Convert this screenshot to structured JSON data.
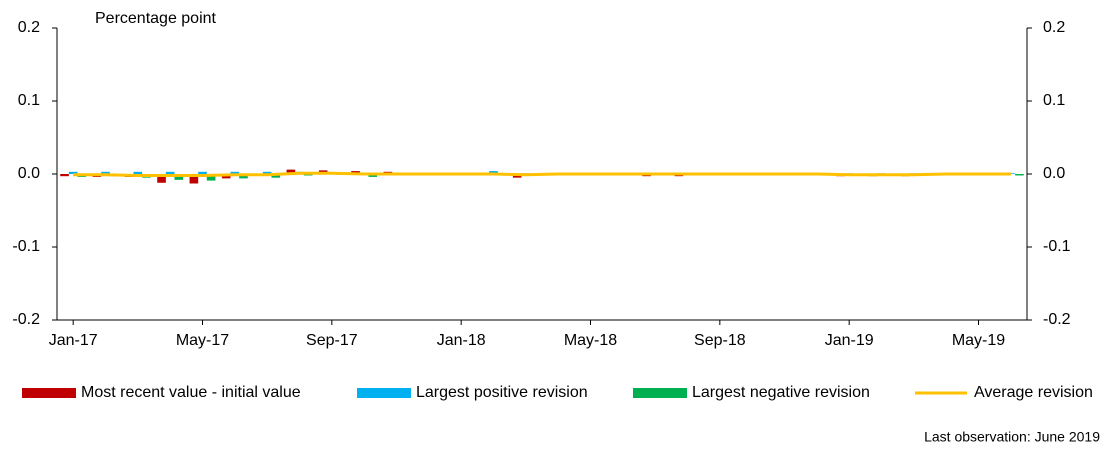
{
  "chart_data": {
    "type": "bar",
    "y_label": "Percentage point",
    "note": "Last observation: June 2019",
    "categories": [
      "Jan-17",
      null,
      null,
      null,
      "May-17",
      null,
      null,
      null,
      "Sep-17",
      null,
      null,
      null,
      "Jan-18",
      null,
      null,
      null,
      "May-18",
      null,
      null,
      null,
      "Sep-18",
      null,
      null,
      null,
      "Jan-19",
      null,
      null,
      null,
      "May-19",
      null
    ],
    "series": [
      {
        "name": "Most recent value - initial value",
        "color": "#c00000",
        "type": "bar",
        "values": [
          -0.003,
          -0.004,
          -0.004,
          -0.012,
          -0.013,
          -0.006,
          -0.002,
          0.006,
          0.005,
          0.004,
          0.003,
          0.002,
          -0.001,
          -0.001,
          -0.005,
          -0.001,
          -0.001,
          -0.001,
          -0.003,
          -0.003,
          -0.001,
          -0.002,
          -0.001,
          -0.001,
          -0.003,
          -0.003,
          -0.003,
          -0.001,
          -0.001,
          0
        ]
      },
      {
        "name": "Largest positive revision",
        "color": "#00b0f0",
        "type": "bar",
        "values": [
          0.003,
          0.003,
          0.003,
          0.003,
          0.003,
          0.003,
          0.003,
          0.003,
          0.002,
          0.002,
          0.002,
          0.001,
          0.001,
          0.004,
          0.001,
          0.001,
          0.001,
          0.001,
          0.001,
          0.001,
          0.001,
          0.001,
          0.001,
          0.001,
          0.001,
          0.001,
          0.001,
          0.001,
          0.001,
          0.001
        ]
      },
      {
        "name": "Largest negative revision",
        "color": "#00b050",
        "type": "bar",
        "values": [
          -0.004,
          -0.003,
          -0.005,
          -0.008,
          -0.009,
          -0.006,
          -0.005,
          -0.002,
          -0.001,
          -0.004,
          -0.001,
          -0.001,
          -0.001,
          -0.001,
          -0.001,
          -0.001,
          -0.001,
          -0.001,
          -0.001,
          -0.001,
          -0.001,
          -0.001,
          -0.001,
          -0.001,
          -0.001,
          -0.001,
          -0.001,
          -0.001,
          -0.001,
          -0.002
        ]
      },
      {
        "name": "Average revision",
        "color": "#ffc000",
        "type": "line",
        "values": [
          -0.001,
          -0.001,
          -0.002,
          -0.002,
          -0.002,
          -0.001,
          -0.001,
          0.001,
          0.001,
          0,
          0,
          0,
          0,
          0,
          -0.001,
          0,
          0,
          0,
          0,
          0,
          0,
          0,
          0,
          0,
          -0.001,
          -0.001,
          -0.001,
          0,
          0,
          0
        ]
      }
    ],
    "ylim": [
      -0.2,
      0.2
    ],
    "yticks": [
      -0.2,
      -0.1,
      {
        "value": 0,
        "label": "0.0"
      },
      0.1,
      0.2
    ],
    "y2lim": [
      -0.2,
      0.2
    ],
    "y2ticks": [
      -0.2,
      -0.1,
      {
        "value": 0,
        "label": "0.0"
      },
      0.1,
      0.2
    ],
    "legend": "bottom",
    "grid": false
  }
}
